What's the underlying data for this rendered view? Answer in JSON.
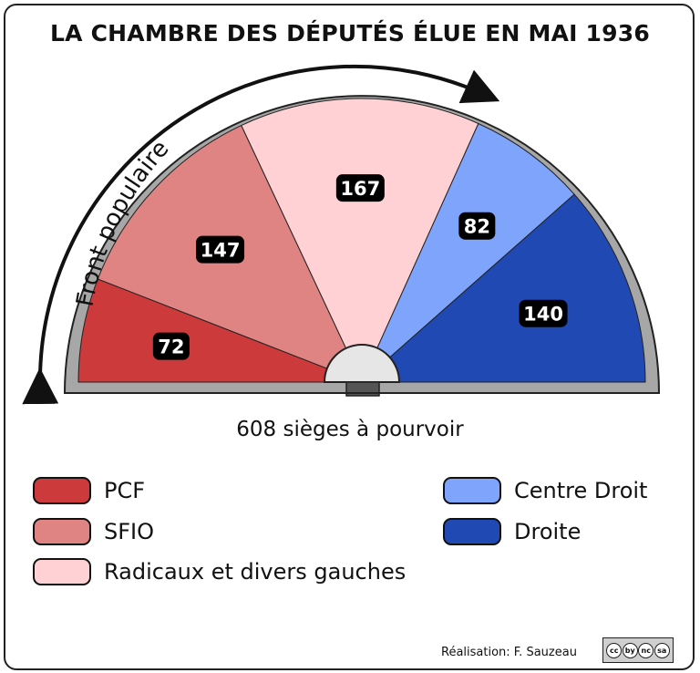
{
  "chart_data": {
    "type": "pie",
    "title": "LA CHAMBRE DES DÉPUTÉS ÉLUE EN MAI 1936",
    "subtitle": "608 sièges à pourvoir",
    "annotation": "Front populaire",
    "categories": [
      "PCF",
      "SFIO",
      "Radicaux et divers gauches",
      "Centre Droit",
      "Droite"
    ],
    "values": [
      72,
      147,
      167,
      82,
      140
    ],
    "colors": [
      "#cc3a3c",
      "#df8383",
      "#ffd1d4",
      "#7ea4fc",
      "#2149b4"
    ],
    "value_labels": [
      "72",
      "147",
      "167",
      "82",
      "140"
    ]
  },
  "credit": "Réalisation: F. Sauzeau",
  "license_icons": [
    "cc",
    "by",
    "nc",
    "sa"
  ]
}
